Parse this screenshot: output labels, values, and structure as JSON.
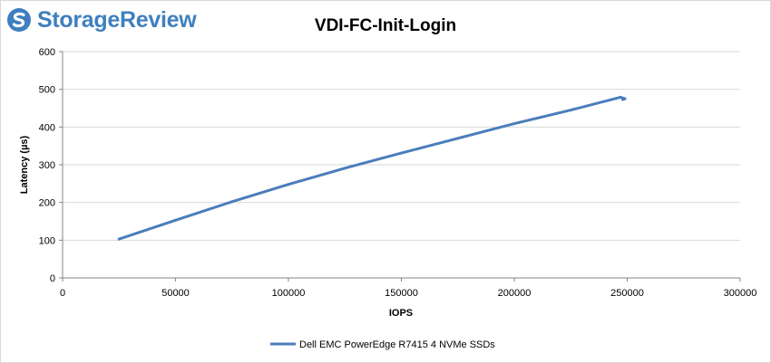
{
  "brand": {
    "logo_text": "StorageReview",
    "accent_color": "#3f7fbf"
  },
  "chart_data": {
    "type": "line",
    "title": "VDI-FC-Init-Login",
    "xlabel": "IOPS",
    "ylabel": "Latency (µs)",
    "xlim": [
      0,
      300000
    ],
    "ylim": [
      0,
      600
    ],
    "x_ticks": [
      "0",
      "50000",
      "100000",
      "150000",
      "200000",
      "250000",
      "300000"
    ],
    "y_ticks": [
      "0",
      "100",
      "200",
      "300",
      "400",
      "500",
      "600"
    ],
    "grid": "horizontal",
    "legend_position": "bottom",
    "series": [
      {
        "name": "Dell EMC PowerEdge R7415 4 NVMe SSDs",
        "color": "#4a7ebb",
        "x": [
          25000,
          50000,
          75000,
          100000,
          125000,
          150000,
          175000,
          200000,
          225000,
          247000,
          249000,
          248000
        ],
        "y": [
          103,
          153,
          202,
          248,
          291,
          331,
          370,
          409,
          445,
          479,
          475,
          473
        ]
      }
    ]
  }
}
